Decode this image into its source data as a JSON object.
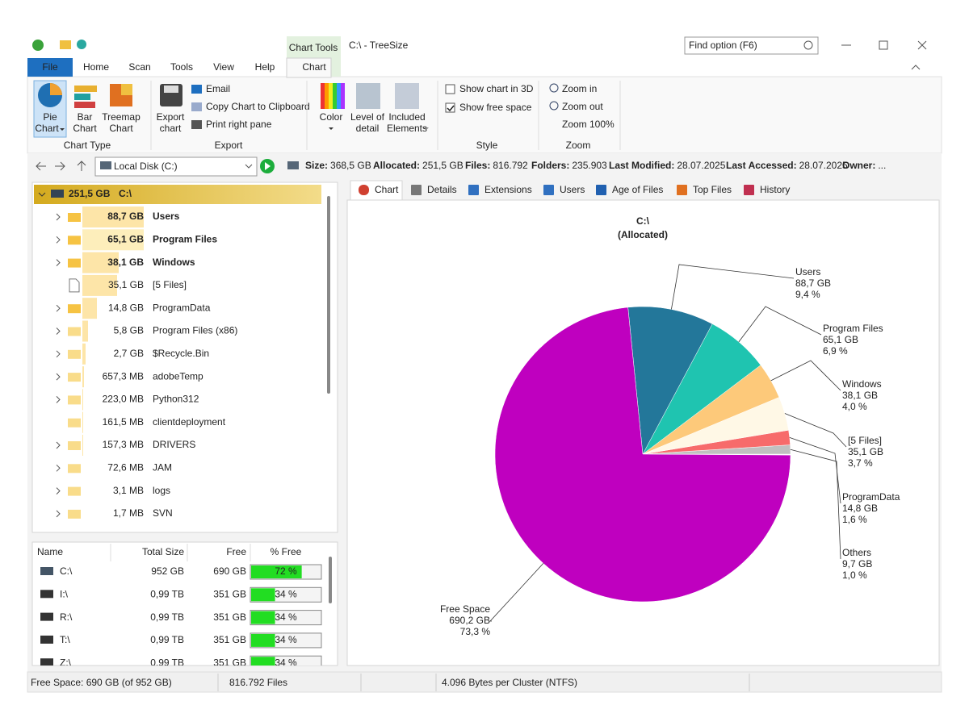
{
  "title_bar": {
    "contextual_tab": "Chart Tools",
    "window_title": "C:\\ - TreeSize",
    "search_placeholder": "Find option (F6)"
  },
  "ribbon_tabs": [
    "File",
    "Home",
    "Scan",
    "Tools",
    "View",
    "Help",
    "Chart"
  ],
  "ribbon": {
    "chart_type": {
      "buttons": [
        [
          "Pie",
          "Chart"
        ],
        [
          "Bar",
          "Chart"
        ],
        [
          "Treemap",
          "Chart"
        ]
      ],
      "label": "Chart Type"
    },
    "export": {
      "button": [
        "Export",
        "chart"
      ],
      "items": [
        "Email",
        "Copy Chart to Clipboard",
        "Print right pane"
      ],
      "label": "Export"
    },
    "appearance": {
      "buttons": [
        [
          "Color"
        ],
        [
          "Level of",
          "detail"
        ],
        [
          "Included",
          "Elements"
        ]
      ]
    },
    "style": {
      "options": [
        {
          "text": "Show chart in 3D",
          "checked": false
        },
        {
          "text": "Show free space",
          "checked": true
        }
      ],
      "label": "Style"
    },
    "zoom": {
      "items": [
        "Zoom in",
        "Zoom out",
        "Zoom 100%"
      ],
      "label": "Zoom"
    }
  },
  "address": {
    "path": "Local Disk (C:)"
  },
  "info": [
    {
      "label": "Size:",
      "value": "368,5 GB"
    },
    {
      "label": "Allocated:",
      "value": "251,5 GB"
    },
    {
      "label": "Files:",
      "value": "816.792"
    },
    {
      "label": "Folders:",
      "value": "235.903"
    },
    {
      "label": "Last Modified:",
      "value": "28.07.2025"
    },
    {
      "label": "Last Accessed:",
      "value": "28.07.2025"
    },
    {
      "label": "Owner:",
      "value": "..."
    }
  ],
  "tree": {
    "root": {
      "size": "251,5 GB",
      "name": "C:\\"
    },
    "rows": [
      {
        "size": "88,7 GB",
        "name": "Users",
        "style": "bold",
        "icon": "folder",
        "expandable": true
      },
      {
        "size": "65,1 GB",
        "name": "Program Files",
        "style": "bold",
        "icon": "folder",
        "expandable": true
      },
      {
        "size": "38,1 GB",
        "name": "Windows",
        "style": "bold",
        "icon": "folder",
        "expandable": true
      },
      {
        "size": "35,1 GB",
        "name": "[5 Files]",
        "style": "normal",
        "icon": "file",
        "expandable": false
      },
      {
        "size": "14,8 GB",
        "name": "ProgramData",
        "style": "blue",
        "icon": "folder",
        "expandable": true
      },
      {
        "size": "5,8 GB",
        "name": "Program Files (x86)",
        "style": "normal",
        "icon": "folder",
        "expandable": true
      },
      {
        "size": "2,7 GB",
        "name": "$Recycle.Bin",
        "style": "normal",
        "icon": "folder",
        "expandable": true
      },
      {
        "size": "657,3 MB",
        "name": "adobeTemp",
        "style": "normal",
        "icon": "folder",
        "expandable": true
      },
      {
        "size": "223,0 MB",
        "name": "Python312",
        "style": "normal",
        "icon": "folder",
        "expandable": true
      },
      {
        "size": "161,5 MB",
        "name": "clientdeployment",
        "style": "normal",
        "icon": "folder",
        "expandable": false
      },
      {
        "size": "157,3 MB",
        "name": "DRIVERS",
        "style": "normal",
        "icon": "folder",
        "expandable": true
      },
      {
        "size": "72,6 MB",
        "name": "JAM",
        "style": "normal",
        "icon": "folder",
        "expandable": true
      },
      {
        "size": "3,1 MB",
        "name": "logs",
        "style": "normal",
        "icon": "folder",
        "expandable": true
      },
      {
        "size": "1,7 MB",
        "name": "SVN",
        "style": "normal",
        "icon": "folder",
        "expandable": true
      }
    ]
  },
  "drives": {
    "columns": [
      "Name",
      "Total Size",
      "Free",
      "% Free"
    ],
    "rows": [
      {
        "name": "C:\\",
        "total": "952 GB",
        "free": "690 GB",
        "pct_free": {
          "value": 72,
          "label": "72 %"
        }
      },
      {
        "name": "I:\\",
        "total": "0,99 TB",
        "free": "351 GB",
        "pct_free": {
          "value": 34,
          "label": "34 %"
        }
      },
      {
        "name": "R:\\",
        "total": "0,99 TB",
        "free": "351 GB",
        "pct_free": {
          "value": 34,
          "label": "34 %"
        }
      },
      {
        "name": "T:\\",
        "total": "0,99 TB",
        "free": "351 GB",
        "pct_free": {
          "value": 34,
          "label": "34 %"
        }
      },
      {
        "name": "Z:\\",
        "total": "0,99 TB",
        "free": "351 GB",
        "pct_free": {
          "value": 34,
          "label": "34 %"
        }
      }
    ]
  },
  "view_tabs": [
    "Chart",
    "Details",
    "Extensions",
    "Users",
    "Age of Files",
    "Top Files",
    "History"
  ],
  "chart_data": {
    "type": "pie",
    "title": "C:\\",
    "subtitle": "(Allocated)",
    "categories": [
      "Others",
      "ProgramData",
      "[5 Files]",
      "Windows",
      "Program Files",
      "Users",
      "Free Space"
    ],
    "sizes": [
      "9,7 GB",
      "14,8 GB",
      "35,1 GB",
      "38,1 GB",
      "65,1 GB",
      "88,7 GB",
      "690,2 GB"
    ],
    "values": [
      1.0,
      1.6,
      3.7,
      4.0,
      6.9,
      9.4,
      73.3
    ],
    "value_labels": [
      "1,0 %",
      "1,6 %",
      "3,7 %",
      "4,0 %",
      "6,9 %",
      "9,4 %",
      "73,3 %"
    ],
    "colors": [
      "#c0c0c0",
      "#f76b6b",
      "#fff8e6",
      "#fdc97a",
      "#1fc4b0",
      "#23779a",
      "#bf00bf"
    ]
  },
  "status": [
    "Free Space: 690 GB  (of 952 GB)",
    "816.792 Files",
    "4.096 Bytes per Cluster (NTFS)"
  ]
}
